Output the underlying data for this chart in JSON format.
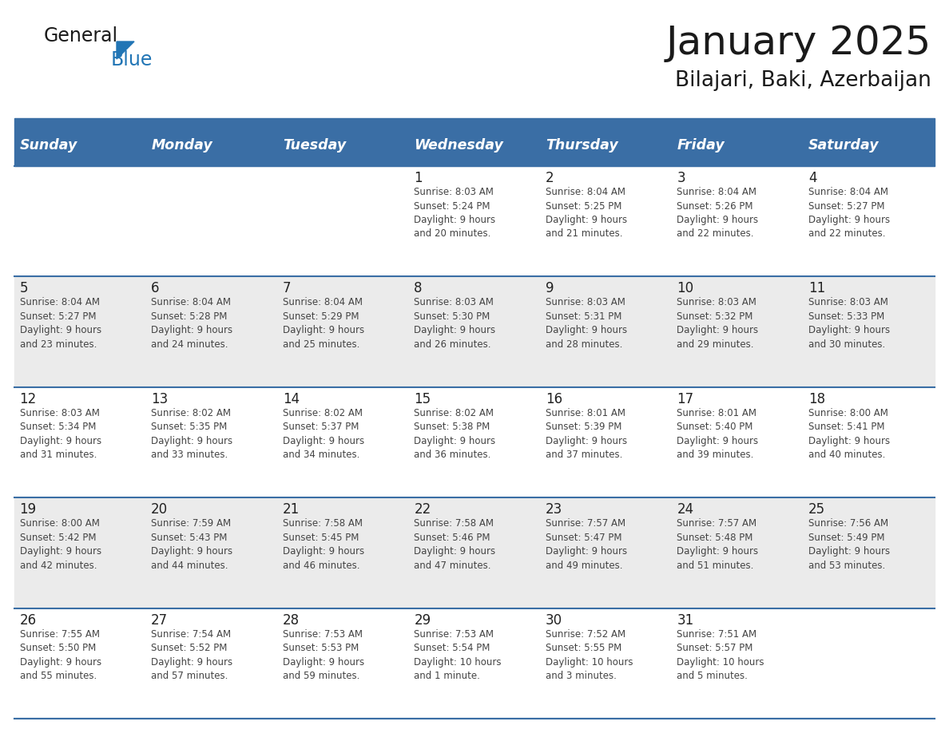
{
  "title": "January 2025",
  "subtitle": "Bilajari, Baki, Azerbaijan",
  "days_of_week": [
    "Sunday",
    "Monday",
    "Tuesday",
    "Wednesday",
    "Thursday",
    "Friday",
    "Saturday"
  ],
  "header_bg": "#3A6EA5",
  "header_text": "#FFFFFF",
  "row_bg_even": "#EBEBEB",
  "row_bg_odd": "#FFFFFF",
  "cell_text_color": "#444444",
  "day_num_color": "#222222",
  "grid_line_color": "#3A6EA5",
  "title_color": "#1a1a1a",
  "subtitle_color": "#1a1a1a",
  "logo_general_color": "#1a1a1a",
  "logo_blue_color": "#2175B5",
  "calendar": [
    [
      {
        "day": null,
        "text": ""
      },
      {
        "day": null,
        "text": ""
      },
      {
        "day": null,
        "text": ""
      },
      {
        "day": 1,
        "text": "Sunrise: 8:03 AM\nSunset: 5:24 PM\nDaylight: 9 hours\nand 20 minutes."
      },
      {
        "day": 2,
        "text": "Sunrise: 8:04 AM\nSunset: 5:25 PM\nDaylight: 9 hours\nand 21 minutes."
      },
      {
        "day": 3,
        "text": "Sunrise: 8:04 AM\nSunset: 5:26 PM\nDaylight: 9 hours\nand 22 minutes."
      },
      {
        "day": 4,
        "text": "Sunrise: 8:04 AM\nSunset: 5:27 PM\nDaylight: 9 hours\nand 22 minutes."
      }
    ],
    [
      {
        "day": 5,
        "text": "Sunrise: 8:04 AM\nSunset: 5:27 PM\nDaylight: 9 hours\nand 23 minutes."
      },
      {
        "day": 6,
        "text": "Sunrise: 8:04 AM\nSunset: 5:28 PM\nDaylight: 9 hours\nand 24 minutes."
      },
      {
        "day": 7,
        "text": "Sunrise: 8:04 AM\nSunset: 5:29 PM\nDaylight: 9 hours\nand 25 minutes."
      },
      {
        "day": 8,
        "text": "Sunrise: 8:03 AM\nSunset: 5:30 PM\nDaylight: 9 hours\nand 26 minutes."
      },
      {
        "day": 9,
        "text": "Sunrise: 8:03 AM\nSunset: 5:31 PM\nDaylight: 9 hours\nand 28 minutes."
      },
      {
        "day": 10,
        "text": "Sunrise: 8:03 AM\nSunset: 5:32 PM\nDaylight: 9 hours\nand 29 minutes."
      },
      {
        "day": 11,
        "text": "Sunrise: 8:03 AM\nSunset: 5:33 PM\nDaylight: 9 hours\nand 30 minutes."
      }
    ],
    [
      {
        "day": 12,
        "text": "Sunrise: 8:03 AM\nSunset: 5:34 PM\nDaylight: 9 hours\nand 31 minutes."
      },
      {
        "day": 13,
        "text": "Sunrise: 8:02 AM\nSunset: 5:35 PM\nDaylight: 9 hours\nand 33 minutes."
      },
      {
        "day": 14,
        "text": "Sunrise: 8:02 AM\nSunset: 5:37 PM\nDaylight: 9 hours\nand 34 minutes."
      },
      {
        "day": 15,
        "text": "Sunrise: 8:02 AM\nSunset: 5:38 PM\nDaylight: 9 hours\nand 36 minutes."
      },
      {
        "day": 16,
        "text": "Sunrise: 8:01 AM\nSunset: 5:39 PM\nDaylight: 9 hours\nand 37 minutes."
      },
      {
        "day": 17,
        "text": "Sunrise: 8:01 AM\nSunset: 5:40 PM\nDaylight: 9 hours\nand 39 minutes."
      },
      {
        "day": 18,
        "text": "Sunrise: 8:00 AM\nSunset: 5:41 PM\nDaylight: 9 hours\nand 40 minutes."
      }
    ],
    [
      {
        "day": 19,
        "text": "Sunrise: 8:00 AM\nSunset: 5:42 PM\nDaylight: 9 hours\nand 42 minutes."
      },
      {
        "day": 20,
        "text": "Sunrise: 7:59 AM\nSunset: 5:43 PM\nDaylight: 9 hours\nand 44 minutes."
      },
      {
        "day": 21,
        "text": "Sunrise: 7:58 AM\nSunset: 5:45 PM\nDaylight: 9 hours\nand 46 minutes."
      },
      {
        "day": 22,
        "text": "Sunrise: 7:58 AM\nSunset: 5:46 PM\nDaylight: 9 hours\nand 47 minutes."
      },
      {
        "day": 23,
        "text": "Sunrise: 7:57 AM\nSunset: 5:47 PM\nDaylight: 9 hours\nand 49 minutes."
      },
      {
        "day": 24,
        "text": "Sunrise: 7:57 AM\nSunset: 5:48 PM\nDaylight: 9 hours\nand 51 minutes."
      },
      {
        "day": 25,
        "text": "Sunrise: 7:56 AM\nSunset: 5:49 PM\nDaylight: 9 hours\nand 53 minutes."
      }
    ],
    [
      {
        "day": 26,
        "text": "Sunrise: 7:55 AM\nSunset: 5:50 PM\nDaylight: 9 hours\nand 55 minutes."
      },
      {
        "day": 27,
        "text": "Sunrise: 7:54 AM\nSunset: 5:52 PM\nDaylight: 9 hours\nand 57 minutes."
      },
      {
        "day": 28,
        "text": "Sunrise: 7:53 AM\nSunset: 5:53 PM\nDaylight: 9 hours\nand 59 minutes."
      },
      {
        "day": 29,
        "text": "Sunrise: 7:53 AM\nSunset: 5:54 PM\nDaylight: 10 hours\nand 1 minute."
      },
      {
        "day": 30,
        "text": "Sunrise: 7:52 AM\nSunset: 5:55 PM\nDaylight: 10 hours\nand 3 minutes."
      },
      {
        "day": 31,
        "text": "Sunrise: 7:51 AM\nSunset: 5:57 PM\nDaylight: 10 hours\nand 5 minutes."
      },
      {
        "day": null,
        "text": ""
      }
    ]
  ]
}
